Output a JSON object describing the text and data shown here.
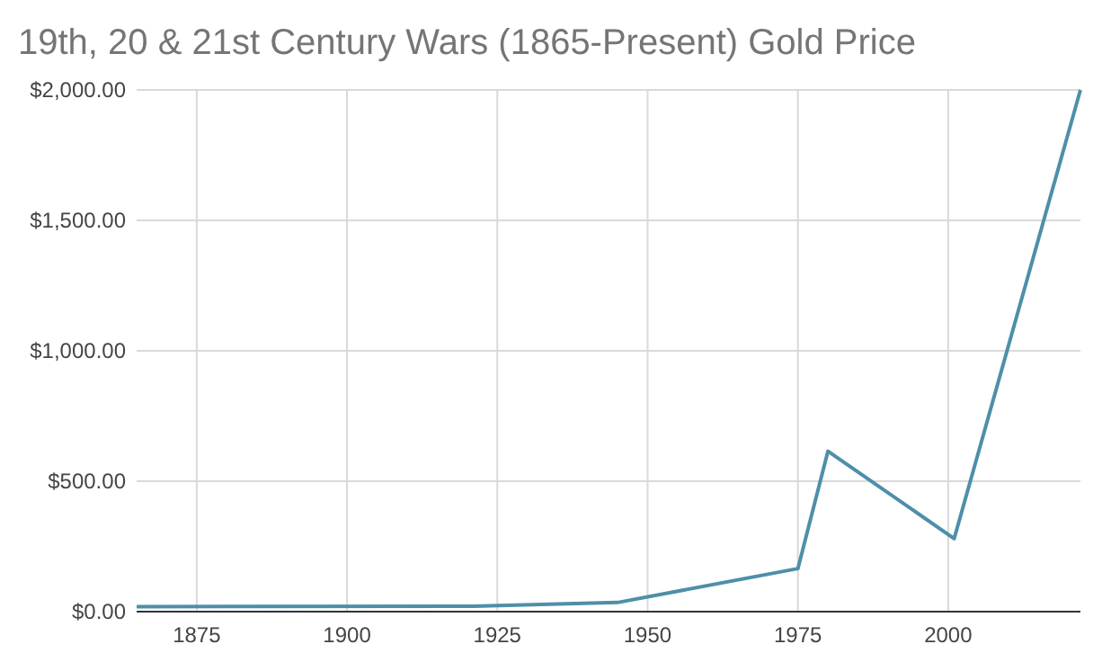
{
  "chart_data": {
    "type": "line",
    "title": "19th, 20 & 21st Century Wars (1865-Present) Gold Price",
    "x": [
      1865,
      1921,
      1945,
      1975,
      1980,
      2001,
      2022
    ],
    "series": [
      {
        "color": "#4e8fa8",
        "values": [
          19,
          21,
          35,
          165,
          615,
          280,
          2000
        ]
      }
    ],
    "xlim": [
      1865,
      2022
    ],
    "xticks": [
      1875,
      1900,
      1925,
      1950,
      1975,
      2000
    ],
    "ylim": [
      0,
      2000
    ],
    "yticks": [
      {
        "value": 0,
        "label": "$0.00"
      },
      {
        "value": 500,
        "label": "$500.00"
      },
      {
        "value": 1000,
        "label": "$1,000.00"
      },
      {
        "value": 1500,
        "label": "$1,500.00"
      },
      {
        "value": 2000,
        "label": "$2,000.00"
      }
    ],
    "grid": true
  }
}
